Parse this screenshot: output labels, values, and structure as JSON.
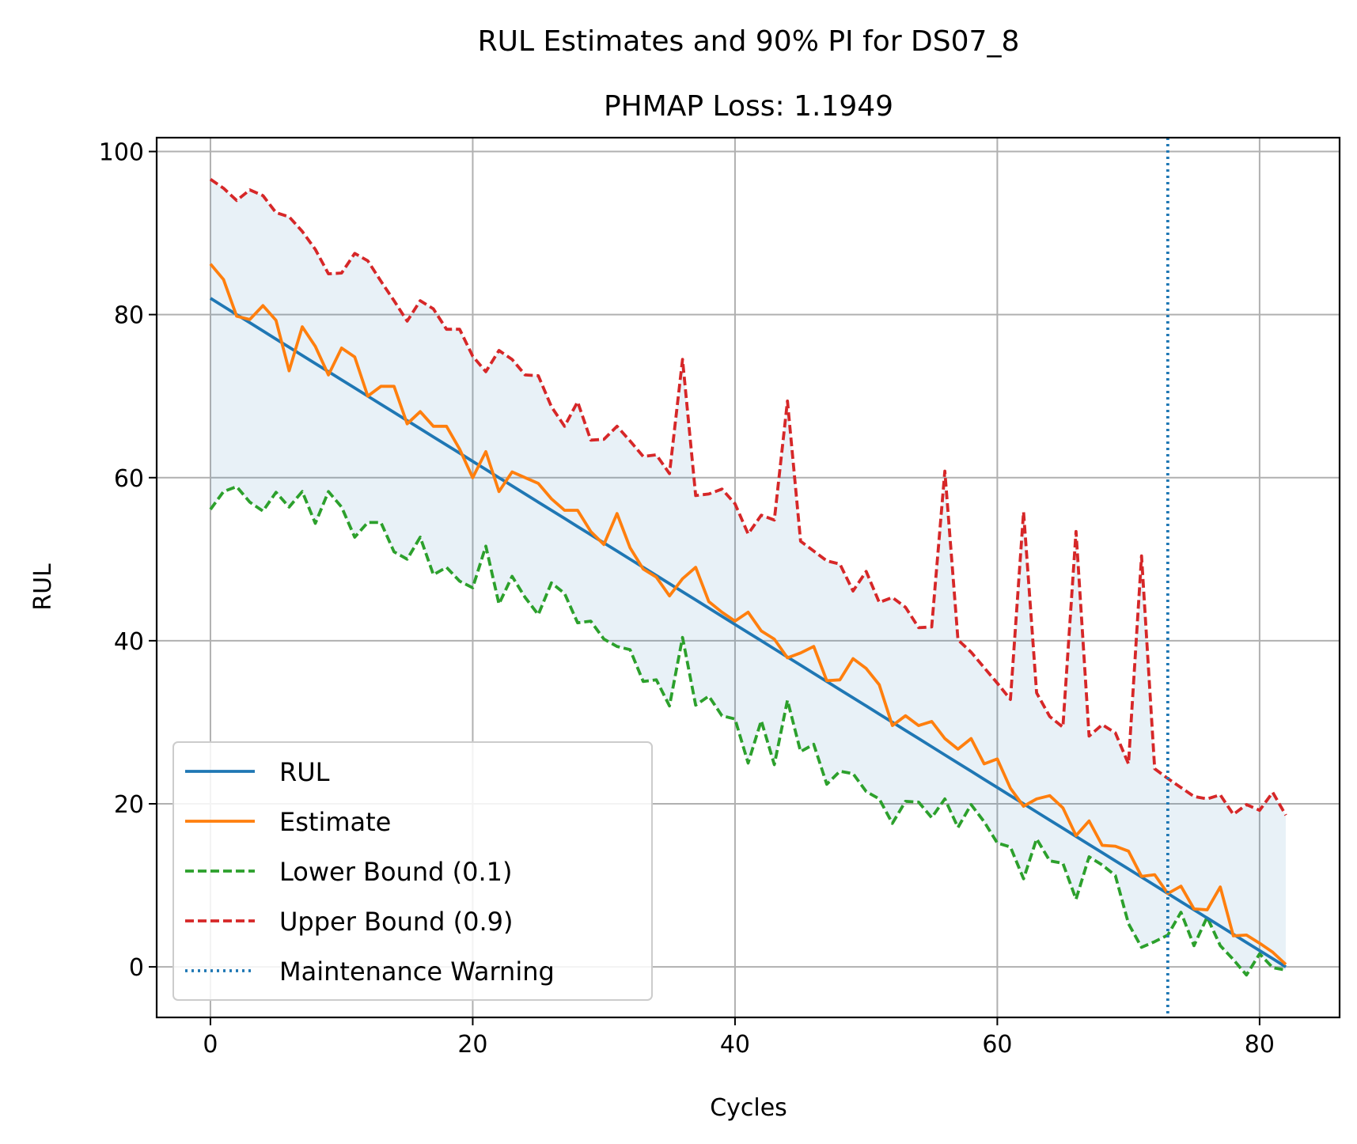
{
  "chart_data": {
    "type": "line",
    "title": "RUL Estimates and 90% PI for DS07_8",
    "subtitle": "PHMAP Loss: 1.1949",
    "xlabel": "Cycles",
    "ylabel": "RUL",
    "xlim": [
      -4.1,
      86.1
    ],
    "ylim": [
      -6.2,
      101.7
    ],
    "xticks": [
      0,
      20,
      40,
      60,
      80
    ],
    "yticks": [
      0,
      20,
      40,
      60,
      80,
      100
    ],
    "x": [
      0,
      1,
      2,
      3,
      4,
      5,
      6,
      7,
      8,
      9,
      10,
      11,
      12,
      13,
      14,
      15,
      16,
      17,
      18,
      19,
      20,
      21,
      22,
      23,
      24,
      25,
      26,
      27,
      28,
      29,
      30,
      31,
      32,
      33,
      34,
      35,
      36,
      37,
      38,
      39,
      40,
      41,
      42,
      43,
      44,
      45,
      46,
      47,
      48,
      49,
      50,
      51,
      52,
      53,
      54,
      55,
      56,
      57,
      58,
      59,
      60,
      61,
      62,
      63,
      64,
      65,
      66,
      67,
      68,
      69,
      70,
      71,
      72,
      73,
      74,
      75,
      76,
      77,
      78,
      79,
      80,
      81,
      82
    ],
    "series": [
      {
        "name": "RUL",
        "color": "#1f77b4",
        "style": "solid",
        "values": [
          82,
          81,
          80,
          79,
          78,
          77,
          76,
          75,
          74,
          73,
          72,
          71,
          70,
          69,
          68,
          67,
          66,
          65,
          64,
          63,
          62,
          61,
          60,
          59,
          58,
          57,
          56,
          55,
          54,
          53,
          52,
          51,
          50,
          49,
          48,
          47,
          46,
          45,
          44,
          43,
          42,
          41,
          40,
          39,
          38,
          37,
          36,
          35,
          34,
          33,
          32,
          31,
          30,
          29,
          28,
          27,
          26,
          25,
          24,
          23,
          22,
          21,
          20,
          19,
          18,
          17,
          16,
          15,
          14,
          13,
          12,
          11,
          10,
          9,
          8,
          7,
          6,
          5,
          4,
          3,
          2,
          1,
          0
        ]
      },
      {
        "name": "Estimate",
        "color": "#ff7f0e",
        "style": "solid",
        "values": [
          86.2,
          84.3,
          79.8,
          79.4,
          81.1,
          79.3,
          73.1,
          78.5,
          76.1,
          72.6,
          75.9,
          74.8,
          70.0,
          71.2,
          71.2,
          66.6,
          68.1,
          66.3,
          66.3,
          63.5,
          60.0,
          63.2,
          58.3,
          60.7,
          60.0,
          59.3,
          57.4,
          56.0,
          56.0,
          53.4,
          51.8,
          55.6,
          51.4,
          48.8,
          47.8,
          45.5,
          47.6,
          49.0,
          44.8,
          43.5,
          42.4,
          43.5,
          41.2,
          40.2,
          37.9,
          38.5,
          39.3,
          35.1,
          35.2,
          37.8,
          36.6,
          34.6,
          29.6,
          30.8,
          29.6,
          30.1,
          28.0,
          26.7,
          28.0,
          24.9,
          25.5,
          21.9,
          19.7,
          20.6,
          21.0,
          19.5,
          16.1,
          17.9,
          14.9,
          14.8,
          14.2,
          11.1,
          11.3,
          9.0,
          9.9,
          7.1,
          7.0,
          9.8,
          3.8,
          3.9,
          2.9,
          1.8,
          0.3
        ]
      },
      {
        "name": "Lower Bound (0.1)",
        "color": "#2ca02c",
        "style": "dashed",
        "values": [
          56.1,
          58.3,
          58.9,
          57.0,
          55.9,
          58.2,
          56.4,
          58.3,
          54.4,
          58.3,
          56.4,
          52.7,
          54.5,
          54.5,
          50.9,
          50.0,
          52.7,
          48.1,
          49.0,
          47.3,
          46.5,
          51.6,
          44.5,
          47.9,
          45.3,
          43.2,
          47.1,
          45.8,
          42.2,
          42.4,
          40.2,
          39.3,
          38.9,
          35.0,
          35.2,
          32.0,
          40.4,
          32.1,
          33.2,
          30.8,
          30.4,
          25.0,
          30.2,
          24.8,
          32.7,
          26.4,
          27.3,
          22.4,
          24.0,
          23.7,
          21.5,
          20.6,
          17.6,
          20.3,
          20.2,
          18.3,
          20.6,
          17.1,
          19.9,
          17.8,
          15.2,
          14.7,
          10.8,
          15.7,
          13.0,
          12.7,
          8.3,
          13.5,
          12.5,
          11.2,
          5.3,
          2.4,
          3.1,
          3.9,
          6.7,
          2.6,
          6.1,
          2.6,
          0.9,
          -1.0,
          1.6,
          -0.1,
          -0.4
        ]
      },
      {
        "name": "Upper Bound (0.9)",
        "color": "#d62728",
        "style": "dashed",
        "values": [
          96.6,
          95.5,
          94.0,
          95.3,
          94.6,
          92.5,
          92.0,
          90.2,
          88.0,
          85.0,
          85.1,
          87.5,
          86.6,
          84.1,
          81.7,
          79.2,
          81.7,
          80.7,
          78.2,
          78.2,
          74.9,
          73.0,
          75.6,
          74.5,
          72.6,
          72.5,
          68.7,
          66.3,
          69.3,
          64.6,
          64.7,
          66.3,
          64.5,
          62.6,
          62.8,
          60.5,
          74.5,
          57.8,
          58.0,
          58.6,
          56.8,
          53.1,
          55.4,
          54.8,
          69.4,
          52.2,
          51.0,
          49.8,
          49.4,
          46.1,
          48.5,
          44.7,
          45.3,
          44.1,
          41.6,
          41.7,
          60.8,
          40.1,
          38.6,
          36.7,
          34.8,
          32.8,
          55.8,
          33.6,
          30.7,
          29.4,
          53.4,
          28.3,
          29.7,
          28.7,
          24.9,
          50.4,
          24.3,
          23.1,
          22.0,
          20.9,
          20.6,
          21.1,
          18.7,
          19.9,
          19.2,
          21.4,
          18.6
        ]
      }
    ],
    "band": {
      "between": [
        "Lower Bound (0.1)",
        "Upper Bound (0.9)"
      ],
      "color": "#1f77b4",
      "opacity": 0.1
    },
    "vline": {
      "name": "Maintenance Warning",
      "x": 73,
      "color": "#1f77b4",
      "style": "dotted"
    },
    "legend": {
      "position": "lower left",
      "items": [
        {
          "label": "RUL",
          "color": "#1f77b4",
          "style": "solid"
        },
        {
          "label": "Estimate",
          "color": "#ff7f0e",
          "style": "solid"
        },
        {
          "label": "Lower Bound (0.1)",
          "color": "#2ca02c",
          "style": "dashed"
        },
        {
          "label": "Upper Bound (0.9)",
          "color": "#d62728",
          "style": "dashed"
        },
        {
          "label": "Maintenance Warning",
          "color": "#1f77b4",
          "style": "dotted"
        }
      ]
    },
    "grid": true
  }
}
